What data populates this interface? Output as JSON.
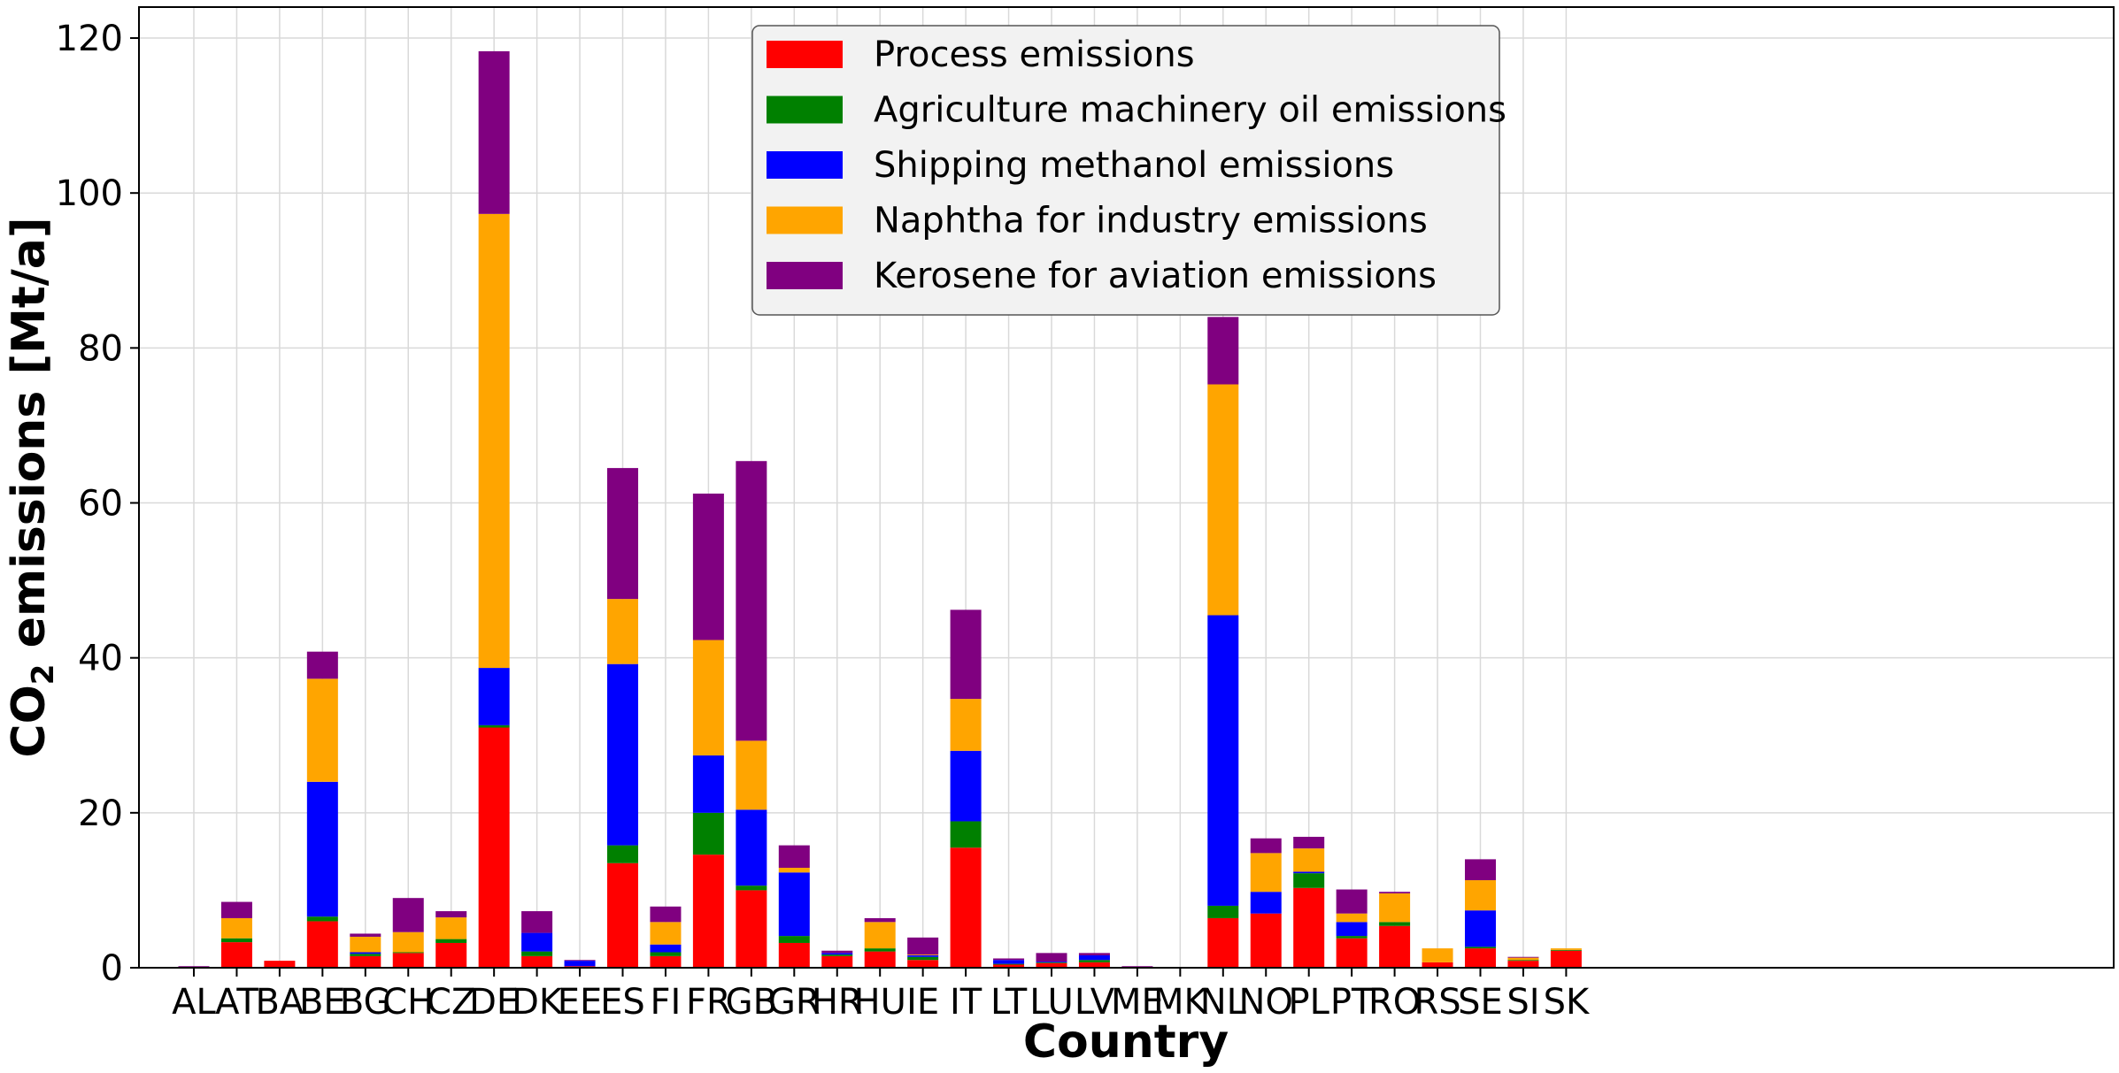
{
  "chart_data": {
    "type": "bar",
    "stacked": true,
    "title": "",
    "xlabel": "Country",
    "ylabel": "CO₂ emissions [Mt/a]",
    "ylabel_parts": {
      "pre": "CO",
      "sub": "2",
      "post": " emissions [Mt/a]"
    },
    "ylim": [
      0,
      124
    ],
    "yticks": [
      0,
      20,
      40,
      60,
      80,
      100,
      120
    ],
    "grid": true,
    "legend_position": "top-center",
    "categories": [
      "AL",
      "AT",
      "BA",
      "BE",
      "BG",
      "CH",
      "CZ",
      "DE",
      "DK",
      "EE",
      "ES",
      "FI",
      "FR",
      "GB",
      "GR",
      "HR",
      "HU",
      "IE",
      "IT",
      "LT",
      "LU",
      "LV",
      "ME",
      "MK",
      "NL",
      "NO",
      "PL",
      "PT",
      "RO",
      "RS",
      "SE",
      "SI",
      "SK"
    ],
    "series": [
      {
        "name": "Process emissions",
        "color": "#ff0000",
        "values": [
          0.1,
          3.3,
          0.9,
          6.0,
          1.5,
          1.9,
          3.2,
          31.0,
          1.5,
          0.2,
          13.5,
          1.5,
          14.6,
          10.0,
          3.2,
          1.5,
          2.1,
          1.0,
          15.5,
          0.4,
          0.6,
          0.7,
          0.1,
          0.0,
          6.4,
          7.0,
          10.3,
          3.8,
          5.4,
          0.7,
          2.5,
          0.9,
          2.2
        ]
      },
      {
        "name": "Agriculture machinery oil emissions",
        "color": "#008000",
        "values": [
          0.0,
          0.5,
          0.0,
          0.6,
          0.3,
          0.1,
          0.5,
          0.3,
          0.6,
          0.0,
          2.3,
          0.5,
          5.4,
          0.6,
          0.9,
          0.2,
          0.4,
          0.4,
          3.4,
          0.1,
          0.1,
          0.3,
          0.0,
          0.0,
          1.6,
          0.0,
          1.9,
          0.3,
          0.5,
          0.0,
          0.2,
          0.1,
          0.1
        ]
      },
      {
        "name": "Shipping methanol emissions",
        "color": "#0000ff",
        "values": [
          0.0,
          0.0,
          0.0,
          17.4,
          0.2,
          0.0,
          0.0,
          7.4,
          2.4,
          0.7,
          23.4,
          1.0,
          7.4,
          9.8,
          8.2,
          0.2,
          0.0,
          0.2,
          9.1,
          0.5,
          0.1,
          0.6,
          0.0,
          0.0,
          37.5,
          2.8,
          0.2,
          1.8,
          0.0,
          0.0,
          4.7,
          0.0,
          0.0
        ]
      },
      {
        "name": "Naphtha for industry emissions",
        "color": "#ffa500",
        "values": [
          0.0,
          2.6,
          0.0,
          13.3,
          2.0,
          2.6,
          2.8,
          58.6,
          0.0,
          0.0,
          8.4,
          2.9,
          14.9,
          8.9,
          0.6,
          0.0,
          3.4,
          0.1,
          6.7,
          0.0,
          0.0,
          0.0,
          0.0,
          0.0,
          29.8,
          5.0,
          3.0,
          1.1,
          3.7,
          1.8,
          3.9,
          0.3,
          0.2
        ]
      },
      {
        "name": "Kerosene for aviation emissions",
        "color": "#800080",
        "values": [
          0.1,
          2.1,
          0.0,
          3.5,
          0.4,
          4.4,
          0.8,
          21.0,
          2.8,
          0.1,
          16.9,
          2.0,
          18.9,
          36.1,
          2.9,
          0.3,
          0.5,
          2.2,
          11.5,
          0.2,
          1.1,
          0.3,
          0.1,
          0.0,
          8.7,
          1.9,
          1.5,
          3.1,
          0.2,
          0.0,
          2.7,
          0.1,
          0.0
        ]
      }
    ]
  }
}
